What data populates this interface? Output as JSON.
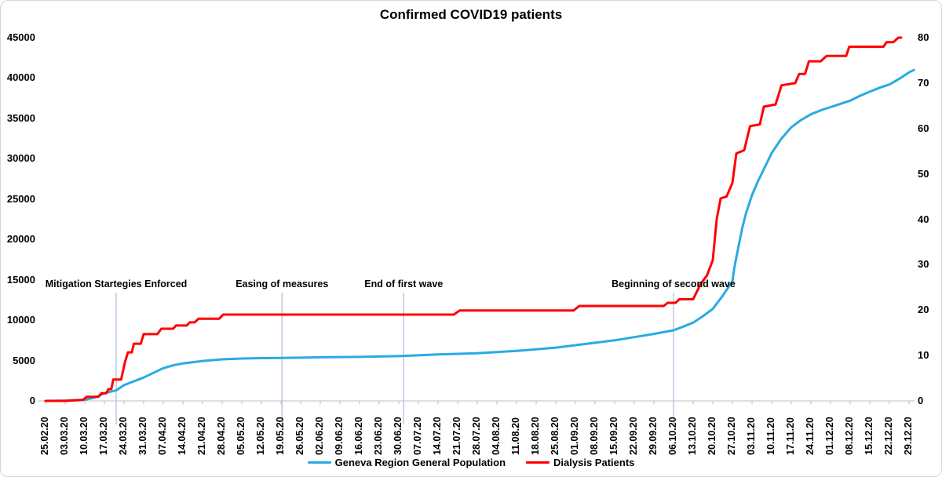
{
  "title": "Confirmed COVID19 patients",
  "legend": [
    {
      "label": "Geneva Region General Population",
      "color": "#29ABE2"
    },
    {
      "label": "Dialysis Patients",
      "color": "#FF0000"
    }
  ],
  "colors": {
    "population_series": "#29ABE2",
    "dialysis_series": "#FF0000",
    "annotation_line": "#A9BBDC",
    "axis_line": "#BFBFBF",
    "text": "#000000",
    "chart_border": "#D6D6D6"
  },
  "chart_data": {
    "type": "line",
    "title": "Confirmed COVID19 patients",
    "grid": false,
    "legend_position": "bottom",
    "x_axis": {
      "unit": "weeks",
      "labels": [
        "25.02.20",
        "03.03.20",
        "10.03.20",
        "17.03.20",
        "24.03.20",
        "31.03.20",
        "07.04.20",
        "14.04.20",
        "21.04.20",
        "28.04.20",
        "05.05.20",
        "12.05.20",
        "19.05.20",
        "26.05.20",
        "02.06.20",
        "09.06.20",
        "16.06.20",
        "23.06.20",
        "30.06.20",
        "07.07.20",
        "14.07.20",
        "21.07.20",
        "28.07.20",
        "04.08.20",
        "11.08.20",
        "18.08.20",
        "25.08.20",
        "01.09.20",
        "08.09.20",
        "15.09.20",
        "22.09.20",
        "29.09.20",
        "06.10.20",
        "13.10.20",
        "20.10.20",
        "27.10.20",
        "03.11.20",
        "10.11.20",
        "17.11.20",
        "24.11.20",
        "01.12.20",
        "08.12.20",
        "15.12.20",
        "22.12.20",
        "29.12.20"
      ]
    },
    "left_y_axis": {
      "min": 0,
      "max": 45000,
      "step": 5000,
      "ticks": [
        "0",
        "5000",
        "10000",
        "15000",
        "20000",
        "25000",
        "30000",
        "35000",
        "40000",
        "45000"
      ]
    },
    "right_y_axis": {
      "min": 0,
      "max": 80,
      "step": 10,
      "ticks": [
        "0",
        "10",
        "20",
        "30",
        "40",
        "50",
        "60",
        "70",
        "80"
      ]
    },
    "series": [
      {
        "name": "Geneva Region General Population",
        "color": "#29ABE2",
        "y_axis": "left",
        "width": 3,
        "points": [
          [
            0,
            0
          ],
          [
            1,
            40
          ],
          [
            2,
            150
          ],
          [
            2.5,
            400
          ],
          [
            3,
            950
          ],
          [
            3.6,
            1300
          ],
          [
            4,
            1950
          ],
          [
            5,
            2900
          ],
          [
            6,
            4050
          ],
          [
            6.5,
            4400
          ],
          [
            7,
            4650
          ],
          [
            8,
            4950
          ],
          [
            9,
            5150
          ],
          [
            10,
            5250
          ],
          [
            11,
            5300
          ],
          [
            12,
            5320
          ],
          [
            13,
            5360
          ],
          [
            14,
            5400
          ],
          [
            15,
            5430
          ],
          [
            16,
            5450
          ],
          [
            17,
            5500
          ],
          [
            18,
            5550
          ],
          [
            19,
            5650
          ],
          [
            20,
            5750
          ],
          [
            21,
            5830
          ],
          [
            22,
            5900
          ],
          [
            23,
            6050
          ],
          [
            24,
            6200
          ],
          [
            25,
            6400
          ],
          [
            26,
            6600
          ],
          [
            27,
            6900
          ],
          [
            28,
            7200
          ],
          [
            29,
            7500
          ],
          [
            30,
            7900
          ],
          [
            31,
            8300
          ],
          [
            32,
            8750
          ],
          [
            32.5,
            9200
          ],
          [
            33,
            9700
          ],
          [
            33.5,
            10500
          ],
          [
            34,
            11400
          ],
          [
            34.5,
            13000
          ],
          [
            35,
            14800
          ],
          [
            35.1,
            16500
          ],
          [
            35.3,
            19000
          ],
          [
            35.5,
            21400
          ],
          [
            35.7,
            23300
          ],
          [
            36,
            25500
          ],
          [
            36.3,
            27200
          ],
          [
            36.5,
            28200
          ],
          [
            37,
            30700
          ],
          [
            37.5,
            32500
          ],
          [
            38,
            33900
          ],
          [
            38.5,
            34800
          ],
          [
            39,
            35500
          ],
          [
            39.5,
            36000
          ],
          [
            40,
            36400
          ],
          [
            40.5,
            36800
          ],
          [
            41,
            37200
          ],
          [
            41.5,
            37800
          ],
          [
            42,
            38300
          ],
          [
            42.5,
            38800
          ],
          [
            43,
            39200
          ],
          [
            43.5,
            39900
          ],
          [
            44,
            40700
          ],
          [
            44.25,
            41000
          ]
        ]
      },
      {
        "name": "Dialysis Patients",
        "color": "#FF0000",
        "y_axis": "right",
        "width": 3,
        "points": [
          [
            0,
            0
          ],
          [
            1,
            0
          ],
          [
            1.9,
            0.2
          ],
          [
            2.1,
            0.9
          ],
          [
            2.7,
            0.9
          ],
          [
            2.85,
            1.7
          ],
          [
            3.1,
            1.7
          ],
          [
            3.2,
            2.6
          ],
          [
            3.35,
            2.6
          ],
          [
            3.45,
            4.7
          ],
          [
            3.85,
            4.7
          ],
          [
            4.05,
            8.6
          ],
          [
            4.2,
            10.7
          ],
          [
            4.4,
            10.7
          ],
          [
            4.5,
            12.6
          ],
          [
            4.85,
            12.6
          ],
          [
            5,
            14.7
          ],
          [
            5.7,
            14.7
          ],
          [
            5.9,
            15.9
          ],
          [
            6.5,
            15.9
          ],
          [
            6.65,
            16.6
          ],
          [
            7.2,
            16.6
          ],
          [
            7.35,
            17.3
          ],
          [
            7.6,
            17.3
          ],
          [
            7.8,
            18.1
          ],
          [
            8.85,
            18.1
          ],
          [
            9.05,
            19
          ],
          [
            20.8,
            19
          ],
          [
            21.1,
            19.9
          ],
          [
            26.9,
            19.9
          ],
          [
            27.2,
            20.9
          ],
          [
            31.5,
            20.9
          ],
          [
            31.7,
            21.6
          ],
          [
            32.1,
            21.6
          ],
          [
            32.3,
            22.4
          ],
          [
            33,
            22.4
          ],
          [
            33.4,
            25.9
          ],
          [
            33.7,
            27.6
          ],
          [
            34,
            31
          ],
          [
            34.2,
            40
          ],
          [
            34.4,
            44.6
          ],
          [
            34.7,
            45
          ],
          [
            35,
            48
          ],
          [
            35.2,
            54.5
          ],
          [
            35.6,
            55.2
          ],
          [
            35.9,
            60.5
          ],
          [
            36.4,
            60.9
          ],
          [
            36.6,
            64.8
          ],
          [
            37.2,
            65.3
          ],
          [
            37.5,
            69.5
          ],
          [
            38.2,
            70
          ],
          [
            38.4,
            72
          ],
          [
            38.7,
            72
          ],
          [
            38.9,
            74.8
          ],
          [
            39.5,
            74.8
          ],
          [
            39.8,
            76
          ],
          [
            40.8,
            76
          ],
          [
            40.95,
            78
          ],
          [
            42.7,
            78
          ],
          [
            42.85,
            79
          ],
          [
            43.2,
            79
          ],
          [
            43.45,
            80
          ],
          [
            43.6,
            80
          ]
        ]
      }
    ],
    "annotations": [
      {
        "label": "Mitigation Startegies Enforced",
        "week": 3.6
      },
      {
        "label": "Easing of measures",
        "week": 12.05
      },
      {
        "label": "End of first wave",
        "week": 18.25
      },
      {
        "label": "Beginning of second wave",
        "week": 32.0
      }
    ]
  }
}
